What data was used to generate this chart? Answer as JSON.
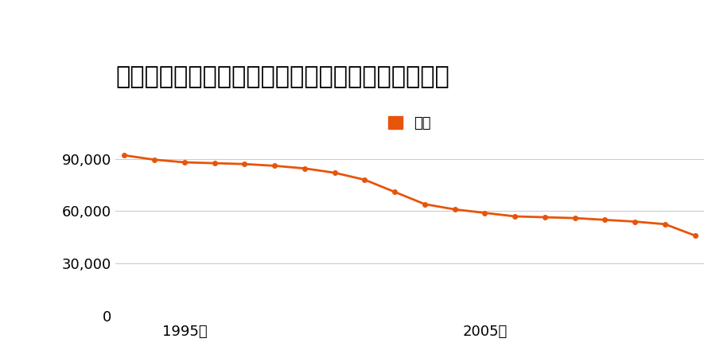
{
  "title": "愛知県西尾市大字一色字前新田１５４番の地価推移",
  "legend_label": "価格",
  "years": [
    1993,
    1994,
    1995,
    1996,
    1997,
    1998,
    1999,
    2000,
    2001,
    2002,
    2003,
    2004,
    2005,
    2006,
    2007,
    2008,
    2009,
    2010,
    2011,
    2012
  ],
  "values": [
    92000,
    89500,
    88000,
    87500,
    87000,
    86000,
    84500,
    82000,
    78000,
    71000,
    64000,
    61000,
    59000,
    57000,
    56500,
    56000,
    55000,
    54000,
    52500,
    46000
  ],
  "line_color": "#e8540a",
  "marker": "o",
  "markersize": 4,
  "linewidth": 2.0,
  "ylim": [
    0,
    100000
  ],
  "yticks": [
    0,
    30000,
    60000,
    90000
  ],
  "xtick_labels": [
    "1995年",
    "2005年"
  ],
  "xtick_positions": [
    1995,
    2005
  ],
  "background_color": "#ffffff",
  "grid_color": "#cccccc",
  "title_fontsize": 22,
  "legend_fontsize": 13,
  "tick_fontsize": 13
}
